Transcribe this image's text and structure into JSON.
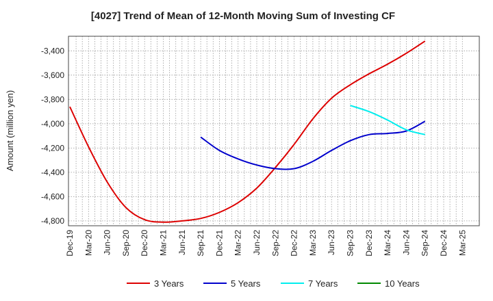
{
  "chart_data": {
    "type": "line",
    "title": "[4027]  Trend of Mean of 12-Month Moving Sum of Investing CF",
    "xlabel": "",
    "ylabel": "Amount (million yen)",
    "ylim": [
      -4840,
      -3280
    ],
    "yticks": [
      -4800,
      -4600,
      -4400,
      -4200,
      -4000,
      -3800,
      -3600,
      -3400
    ],
    "ytick_labels": [
      "-4,800",
      "-4,600",
      "-4,400",
      "-4,200",
      "-4,000",
      "-3,800",
      "-3,600",
      "-3,400"
    ],
    "x_ticks": [
      "Dec-19",
      "Mar-20",
      "Jun-20",
      "Sep-20",
      "Dec-20",
      "Mar-21",
      "Jun-21",
      "Sep-21",
      "Dec-21",
      "Mar-22",
      "Jun-22",
      "Sep-22",
      "Dec-22",
      "Mar-23",
      "Jun-23",
      "Sep-23",
      "Dec-23",
      "Mar-24",
      "Jun-24",
      "Sep-24",
      "Dec-24",
      "Mar-25"
    ],
    "grid": true,
    "legend_position": "bottom",
    "series": [
      {
        "name": "3 Years",
        "color": "#dd0000",
        "x": [
          0,
          1,
          2,
          3,
          4,
          5,
          6,
          7,
          8,
          9,
          10,
          11,
          12,
          13,
          14,
          15,
          16,
          17,
          18,
          19
        ],
        "values": [
          -3860,
          -4190,
          -4480,
          -4690,
          -4790,
          -4810,
          -4800,
          -4780,
          -4730,
          -4650,
          -4530,
          -4360,
          -4170,
          -3960,
          -3790,
          -3680,
          -3590,
          -3510,
          -3420,
          -3320
        ]
      },
      {
        "name": "5 Years",
        "color": "#0000cc",
        "x": [
          7,
          8,
          9,
          10,
          11,
          12,
          13,
          14,
          15,
          16,
          17,
          18,
          19
        ],
        "values": [
          -4110,
          -4220,
          -4290,
          -4340,
          -4370,
          -4370,
          -4310,
          -4220,
          -4140,
          -4090,
          -4080,
          -4060,
          -3980
        ]
      },
      {
        "name": "7 Years",
        "color": "#00eeee",
        "x": [
          15,
          16,
          17,
          18,
          19
        ],
        "values": [
          -3850,
          -3900,
          -3970,
          -4050,
          -4090
        ]
      },
      {
        "name": "10 Years",
        "color": "#008800",
        "x": [],
        "values": []
      }
    ]
  }
}
